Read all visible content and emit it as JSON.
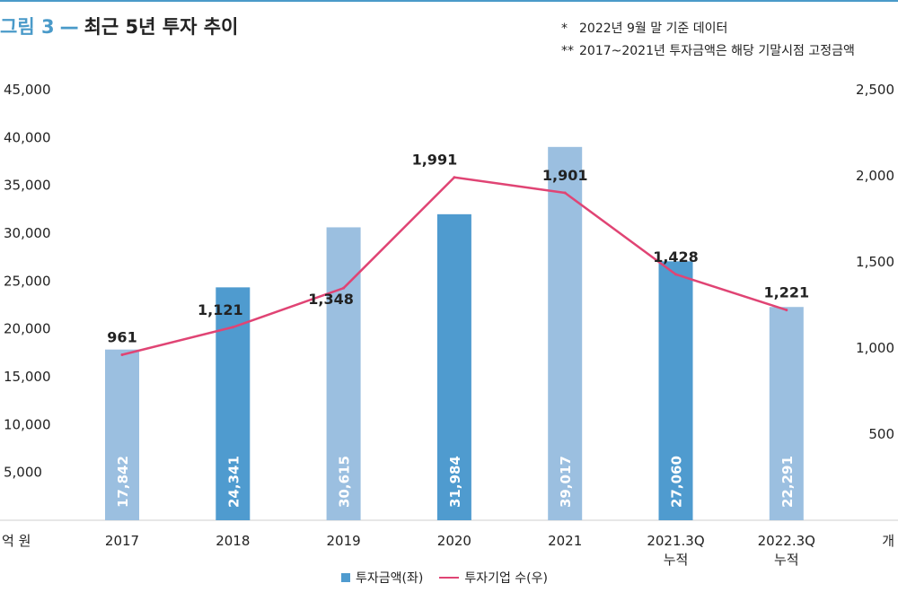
{
  "header": {
    "figure_label": "그림 3",
    "dash": "—",
    "title": "최근 5년 투자 추이"
  },
  "notes": [
    {
      "marker": "*",
      "text": "2022년 9월 말 기준 데이터"
    },
    {
      "marker": "**",
      "text": "2017~2021년 투자금액은 해당 기말시점 고정금액"
    }
  ],
  "legend": {
    "bar_label": "투자금액(좌)",
    "line_label": "투자기업 수(우)"
  },
  "colors": {
    "bar_light": "#9bbfe0",
    "bar_dark": "#4f9bcf",
    "line": "#e04474",
    "accent": "#4a9ac9"
  },
  "chart_data": {
    "type": "bar",
    "categories": [
      [
        "2017"
      ],
      [
        "2018"
      ],
      [
        "2019"
      ],
      [
        "2020"
      ],
      [
        "2021"
      ],
      [
        "2021.3Q",
        "누적"
      ],
      [
        "2022.3Q",
        "누적"
      ]
    ],
    "bar_shades": [
      "light",
      "dark",
      "light",
      "dark",
      "light",
      "dark",
      "light"
    ],
    "left_axis": {
      "unit": "억 원",
      "ylim": [
        0,
        45000
      ],
      "ticks": [
        "5,000",
        "10,000",
        "15,000",
        "20,000",
        "25,000",
        "30,000",
        "35,000",
        "40,000",
        "45,000"
      ],
      "tick_values": [
        5000,
        10000,
        15000,
        20000,
        25000,
        30000,
        35000,
        40000,
        45000
      ]
    },
    "right_axis": {
      "unit": "개",
      "ylim": [
        0,
        2500
      ],
      "ticks": [
        "500",
        "1,000",
        "1,500",
        "2,000",
        "2,500"
      ],
      "tick_values": [
        500,
        1000,
        1500,
        2000,
        2500
      ]
    },
    "series": [
      {
        "name": "투자금액(좌)",
        "type": "bar",
        "axis": "left",
        "values": [
          17842,
          24341,
          30615,
          31984,
          39017,
          27060,
          22291
        ],
        "labels": [
          "17,842",
          "24,341",
          "30,615",
          "31,984",
          "39,017",
          "27,060",
          "22,291"
        ]
      },
      {
        "name": "투자기업 수(우)",
        "type": "line",
        "axis": "right",
        "values": [
          961,
          1121,
          1348,
          1991,
          1901,
          1428,
          1221
        ],
        "labels": [
          "961",
          "1,121",
          "1,348",
          "1,991",
          "1,901",
          "1,428",
          "1,221"
        ]
      }
    ],
    "grid": false,
    "legend_position": "bottom"
  }
}
